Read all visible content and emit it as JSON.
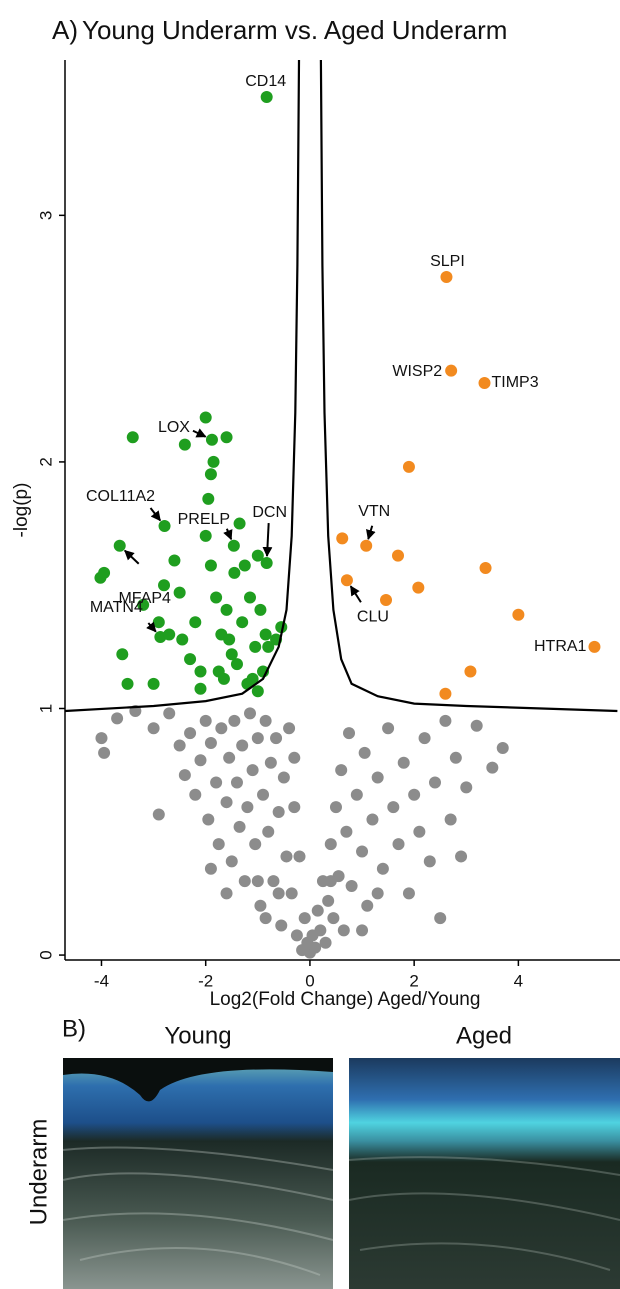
{
  "chart_data": {
    "type": "scatter",
    "panel_label": "A)",
    "title": "Young Underarm vs. Aged Underarm",
    "x_label": "Log2(Fold Change) Aged/Young",
    "y_label": "-log(p)",
    "xlim": [
      -4.7,
      5.95
    ],
    "ylim": [
      -0.02,
      3.63
    ],
    "xticks": [
      -4,
      -2,
      0,
      2,
      4
    ],
    "yticks": [
      0,
      1,
      2,
      3
    ],
    "grid": false,
    "series": [
      {
        "color": "#8c8c8c",
        "x": [
          -4.0,
          -3.95,
          -3.7,
          -3.35,
          -3.0,
          -2.9,
          -2.7,
          -2.5,
          -2.4,
          -2.3,
          -2.2,
          -2.1,
          -2.0,
          -1.95,
          -1.9,
          -1.8,
          -1.75,
          -1.7,
          -1.6,
          -1.55,
          -1.5,
          -1.45,
          -1.4,
          -1.35,
          -1.3,
          -1.25,
          -1.2,
          -1.15,
          -1.1,
          -1.05,
          -1.0,
          -0.95,
          -0.9,
          -0.85,
          -0.8,
          -0.75,
          -0.7,
          -0.65,
          -0.6,
          -0.55,
          -0.5,
          -0.45,
          -0.4,
          -0.35,
          -0.3,
          -0.25,
          -0.2,
          -0.15,
          -0.1,
          -0.05,
          0,
          0.05,
          0.1,
          0.15,
          0.2,
          0.25,
          0.3,
          0.35,
          0.4,
          0.45,
          0.5,
          0.55,
          0.6,
          0.65,
          0.7,
          0.75,
          0.8,
          0.9,
          1.0,
          1.05,
          1.1,
          1.2,
          1.3,
          1.4,
          1.5,
          1.6,
          1.7,
          1.8,
          1.9,
          2.0,
          2.1,
          2.2,
          2.3,
          2.4,
          2.5,
          2.6,
          2.7,
          2.8,
          2.9,
          3.0,
          3.2,
          3.5,
          3.7,
          -1.0,
          -0.6,
          0.4,
          1.0,
          -0.3,
          -0.85,
          1.3,
          -1.9,
          -1.6
        ],
        "values": [
          0.88,
          0.82,
          0.96,
          0.99,
          0.92,
          0.57,
          0.98,
          0.85,
          0.73,
          0.9,
          0.65,
          0.79,
          0.95,
          0.55,
          0.86,
          0.7,
          0.45,
          0.92,
          0.62,
          0.8,
          0.38,
          0.95,
          0.7,
          0.52,
          0.85,
          0.3,
          0.6,
          0.98,
          0.75,
          0.45,
          0.88,
          0.2,
          0.65,
          0.95,
          0.5,
          0.78,
          0.3,
          0.88,
          0.58,
          0.12,
          0.72,
          0.4,
          0.92,
          0.25,
          0.6,
          0.08,
          0.4,
          0.02,
          0.15,
          0.05,
          0.01,
          0.08,
          0.03,
          0.18,
          0.1,
          0.3,
          0.05,
          0.22,
          0.45,
          0.15,
          0.6,
          0.32,
          0.75,
          0.1,
          0.5,
          0.9,
          0.28,
          0.65,
          0.42,
          0.82,
          0.2,
          0.55,
          0.72,
          0.35,
          0.92,
          0.6,
          0.45,
          0.78,
          0.25,
          0.65,
          0.5,
          0.88,
          0.38,
          0.7,
          0.15,
          0.95,
          0.55,
          0.8,
          0.4,
          0.68,
          0.93,
          0.76,
          0.84,
          0.3,
          0.25,
          0.3,
          0.1,
          0.8,
          0.15,
          0.25,
          0.35,
          0.25
        ]
      },
      {
        "color": "#1f9e1f",
        "x": [
          -1.88,
          -2.79,
          -1.46,
          -0.83,
          -3.65,
          -2.87,
          -0.83,
          -4.02,
          -3.4,
          -3.6,
          -3.5,
          -3.2,
          -3.0,
          -2.8,
          -2.7,
          -2.6,
          -2.5,
          -2.4,
          -2.3,
          -2.2,
          -2.1,
          -2.0,
          -1.95,
          -1.9,
          -1.85,
          -1.9,
          -1.8,
          -1.7,
          -1.75,
          -1.6,
          -1.6,
          -1.5,
          -1.45,
          -1.35,
          -1.3,
          -1.2,
          -1.15,
          -1.05,
          -1.0,
          -0.95,
          -0.9,
          -0.85,
          -0.8,
          -0.65,
          -0.55,
          -2.9,
          -2.1,
          -1.65,
          -1.4,
          -1.1,
          -1.0,
          -2.45,
          -1.55,
          -3.95,
          -2.0,
          -1.25
        ],
        "values": [
          2.09,
          1.74,
          1.66,
          1.59,
          1.66,
          1.29,
          3.48,
          1.53,
          2.1,
          1.22,
          1.1,
          1.42,
          1.1,
          1.5,
          1.3,
          1.6,
          1.47,
          2.07,
          1.2,
          1.35,
          1.08,
          2.18,
          1.85,
          1.95,
          2.0,
          1.58,
          1.45,
          1.3,
          1.15,
          2.1,
          1.4,
          1.22,
          1.55,
          1.75,
          1.35,
          1.1,
          1.45,
          1.25,
          1.62,
          1.4,
          1.15,
          1.3,
          1.25,
          1.28,
          1.33,
          1.35,
          1.15,
          1.12,
          1.18,
          1.12,
          1.07,
          1.28,
          1.28,
          1.55,
          1.7,
          1.58
        ],
        "labels": [
          "LOX",
          "COL11A2",
          "PRELP",
          "DCN",
          "MFAP4",
          "MATN4",
          "CD14",
          null,
          null,
          null,
          null,
          null,
          null,
          null,
          null,
          null,
          null,
          null,
          null,
          null,
          null,
          null,
          null,
          null,
          null,
          null,
          null,
          null,
          null,
          null,
          null,
          null,
          null,
          null,
          null,
          null,
          null,
          null,
          null,
          null,
          null,
          null,
          null,
          null,
          null,
          null,
          null,
          null,
          null,
          null,
          null,
          null,
          null,
          null,
          null,
          null
        ]
      },
      {
        "color": "#f28a1f",
        "x": [
          2.62,
          2.71,
          3.35,
          5.46,
          1.08,
          0.71,
          1.9,
          0.62,
          1.69,
          3.37,
          2.08,
          1.46,
          4.0,
          3.08,
          2.6
        ],
        "values": [
          2.75,
          2.37,
          2.32,
          1.25,
          1.66,
          1.52,
          1.98,
          1.69,
          1.62,
          1.57,
          1.49,
          1.44,
          1.38,
          1.15,
          1.06
        ],
        "labels": [
          "SLPI",
          "WISP2",
          "TIMP3",
          "HTRA1",
          "VTN",
          "CLU",
          null,
          null,
          null,
          null,
          null,
          null,
          null,
          null,
          null
        ]
      }
    ],
    "threshold_curve": {
      "color": "#000000",
      "x": [
        -4.7,
        -3,
        -2,
        -1.3,
        -0.9,
        -0.6,
        -0.45,
        -0.35,
        -0.28,
        -0.24,
        -0.21,
        null,
        0.21,
        0.24,
        0.28,
        0.35,
        0.45,
        0.6,
        0.8,
        1.3,
        2,
        3,
        5.9
      ],
      "values": [
        0.99,
        1.01,
        1.03,
        1.06,
        1.12,
        1.25,
        1.4,
        1.7,
        2.2,
        2.8,
        3.63,
        null,
        3.63,
        2.8,
        2.2,
        1.7,
        1.4,
        1.2,
        1.1,
        1.05,
        1.02,
        1.01,
        0.99
      ]
    }
  },
  "panel_b": {
    "label": "B)",
    "columns": [
      "Young",
      "Aged"
    ],
    "row": "Underarm"
  }
}
